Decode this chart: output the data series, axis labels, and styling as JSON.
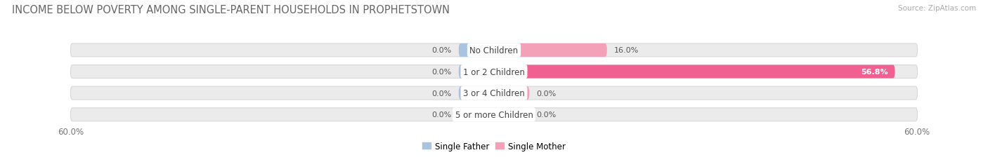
{
  "title": "INCOME BELOW POVERTY AMONG SINGLE-PARENT HOUSEHOLDS IN PROPHETSTOWN",
  "source": "Source: ZipAtlas.com",
  "categories": [
    "No Children",
    "1 or 2 Children",
    "3 or 4 Children",
    "5 or more Children"
  ],
  "single_father": [
    0.0,
    0.0,
    0.0,
    0.0
  ],
  "single_mother": [
    16.0,
    56.8,
    0.0,
    0.0
  ],
  "max_val": 60.0,
  "father_color": "#aac4e0",
  "mother_color_light": "#f4a0b8",
  "mother_color_row1": "#f4a0b8",
  "mother_color_row2": "#f06090",
  "bar_bg_color": "#ebebeb",
  "bar_bg_outline": "#d8d8d8",
  "title_fontsize": 10.5,
  "source_fontsize": 7.5,
  "label_fontsize": 8,
  "axis_label_fontsize": 8.5,
  "category_fontsize": 8.5,
  "legend_fontsize": 8.5,
  "bar_height": 0.62,
  "min_stub": 5.0,
  "background_color": "#ffffff"
}
